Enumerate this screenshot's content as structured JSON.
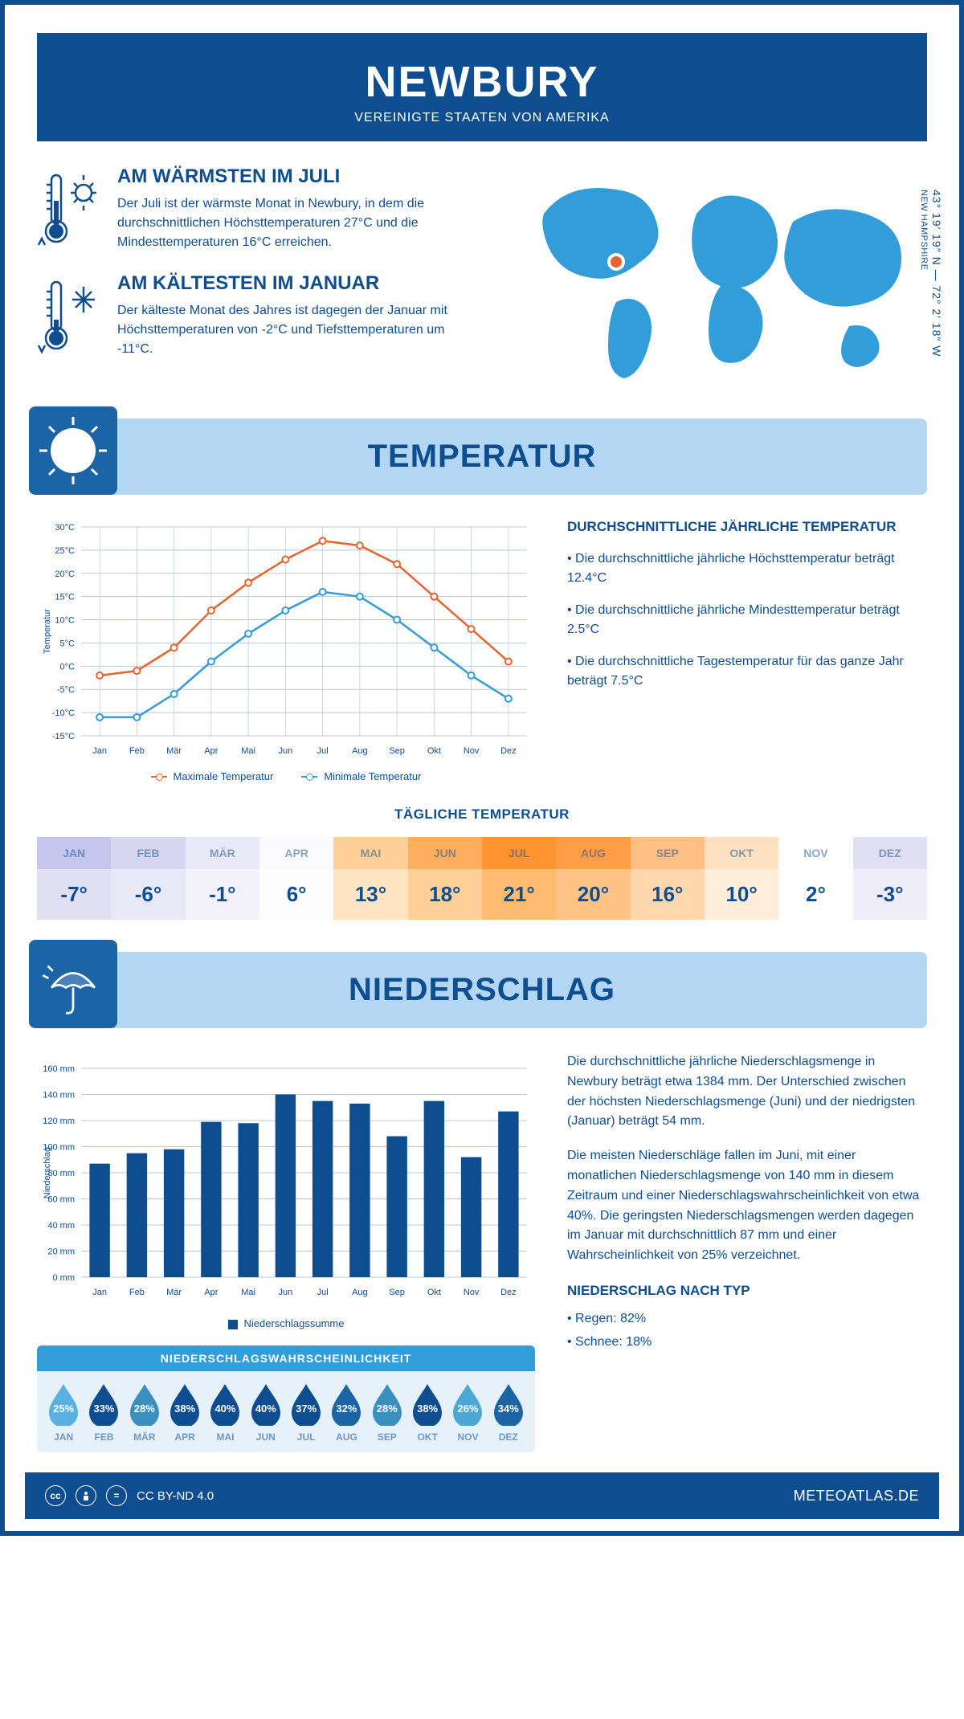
{
  "header": {
    "city": "NEWBURY",
    "country": "VEREINIGTE STAATEN VON AMERIKA"
  },
  "location": {
    "coords": "43° 19′ 19″ N — 72° 2′ 18″ W",
    "state": "NEW HAMPSHIRE"
  },
  "warmest": {
    "title": "AM WÄRMSTEN IM JULI",
    "text": "Der Juli ist der wärmste Monat in Newbury, in dem die durchschnittlichen Höchsttemperaturen 27°C und die Mindesttemperaturen 16°C erreichen."
  },
  "coldest": {
    "title": "AM KÄLTESTEN IM JANUAR",
    "text": "Der kälteste Monat des Jahres ist dagegen der Januar mit Höchsttemperaturen von -2°C und Tiefsttemperaturen um -11°C."
  },
  "section_temp": "TEMPERATUR",
  "section_precip": "NIEDERSCHLAG",
  "temp_chart": {
    "type": "line",
    "months": [
      "Jan",
      "Feb",
      "Mär",
      "Apr",
      "Mai",
      "Jun",
      "Jul",
      "Aug",
      "Sep",
      "Okt",
      "Nov",
      "Dez"
    ],
    "max_values": [
      -2,
      -1,
      4,
      12,
      18,
      23,
      27,
      26,
      22,
      15,
      8,
      1
    ],
    "min_values": [
      -11,
      -11,
      -6,
      1,
      7,
      12,
      16,
      15,
      10,
      4,
      -2,
      -7
    ],
    "max_color": "#e8642e",
    "min_color": "#329dd8",
    "grid_color": "#b9c8d8",
    "background_color": "#ffffff",
    "y_min": -15,
    "y_max": 30,
    "y_step": 5,
    "y_axis_label": "Temperatur",
    "legend_max": "Maximale Temperatur",
    "legend_min": "Minimale Temperatur",
    "fontsize_tick": 11
  },
  "temp_desc": {
    "title": "DURCHSCHNITTLICHE JÄHRLICHE TEMPERATUR",
    "p1": "• Die durchschnittliche jährliche Höchsttemperatur beträgt 12.4°C",
    "p2": "• Die durchschnittliche jährliche Mindesttemperatur beträgt 2.5°C",
    "p3": "• Die durchschnittliche Tagestemperatur für das ganze Jahr beträgt 7.5°C"
  },
  "daily_temp": {
    "title": "TÄGLICHE TEMPERATUR",
    "months": [
      "JAN",
      "FEB",
      "MÄR",
      "APR",
      "MAI",
      "JUN",
      "JUL",
      "AUG",
      "SEP",
      "OKT",
      "NOV",
      "DEZ"
    ],
    "values": [
      "-7°",
      "-6°",
      "-1°",
      "6°",
      "13°",
      "18°",
      "21°",
      "20°",
      "16°",
      "10°",
      "2°",
      "-3°"
    ],
    "head_colors": [
      "#c7c6ec",
      "#d7d6f0",
      "#eae9f7",
      "#fbfbfd",
      "#ffcf99",
      "#ffae5e",
      "#ff9330",
      "#ff9e46",
      "#ffbf85",
      "#ffe1c1",
      "#ffffff",
      "#e1e0f3"
    ],
    "body_colors": [
      "#e1e0f3",
      "#e9e8f6",
      "#f3f2fa",
      "#fefdfe",
      "#ffe4c4",
      "#ffcf99",
      "#ffbb72",
      "#ffc386",
      "#ffd7ac",
      "#ffedd9",
      "#ffffff",
      "#eeedf8"
    ]
  },
  "precip_chart": {
    "type": "bar",
    "months": [
      "Jan",
      "Feb",
      "Mär",
      "Apr",
      "Mai",
      "Jun",
      "Jul",
      "Aug",
      "Sep",
      "Okt",
      "Nov",
      "Dez"
    ],
    "values": [
      87,
      95,
      98,
      119,
      118,
      140,
      135,
      133,
      108,
      135,
      92,
      127
    ],
    "bar_color": "#0e4d8f",
    "grid_color": "#b9c8d8",
    "y_min": 0,
    "y_max": 160,
    "y_step": 20,
    "y_axis_label": "Niederschlag",
    "legend": "Niederschlagssumme",
    "bar_width": 0.55
  },
  "precip_desc": {
    "p1": "Die durchschnittliche jährliche Niederschlagsmenge in Newbury beträgt etwa 1384 mm. Der Unterschied zwischen der höchsten Niederschlagsmenge (Juni) und der niedrigsten (Januar) beträgt 54 mm.",
    "p2": "Die meisten Niederschläge fallen im Juni, mit einer monatlichen Niederschlagsmenge von 140 mm in diesem Zeitraum und einer Niederschlagswahrscheinlichkeit von etwa 40%. Die geringsten Niederschlagsmengen werden dagegen im Januar mit durchschnittlich 87 mm und einer Wahrscheinlichkeit von 25% verzeichnet.",
    "type_title": "NIEDERSCHLAG NACH TYP",
    "type_rain": "• Regen: 82%",
    "type_snow": "• Schnee: 18%"
  },
  "prob": {
    "title": "NIEDERSCHLAGSWAHRSCHEINLICHKEIT",
    "months": [
      "JAN",
      "FEB",
      "MÄR",
      "APR",
      "MAI",
      "JUN",
      "JUL",
      "AUG",
      "SEP",
      "OKT",
      "NOV",
      "DEZ"
    ],
    "values": [
      "25%",
      "33%",
      "28%",
      "38%",
      "40%",
      "40%",
      "37%",
      "32%",
      "28%",
      "38%",
      "26%",
      "34%"
    ],
    "colors": [
      "#58b1e0",
      "#0e4d8f",
      "#3b8fbf",
      "#0e4d8f",
      "#0e4d8f",
      "#0e4d8f",
      "#0e4d8f",
      "#1b65a6",
      "#3b8fbf",
      "#0e4d8f",
      "#4ca7d5",
      "#1b65a6"
    ]
  },
  "footer": {
    "license": "CC BY-ND 4.0",
    "site": "METEOATLAS.DE"
  },
  "colors": {
    "primary": "#0e4d8f",
    "banner_bg": "#b3d7f2",
    "banner_icon": "#1b65a6"
  }
}
